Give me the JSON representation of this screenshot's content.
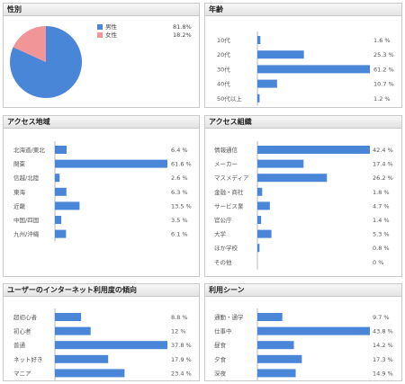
{
  "colors": {
    "bar": "#4a86d8",
    "male": "#4a86d8",
    "female": "#f29599",
    "axis": "#b9b9b9"
  },
  "chart_data": [
    {
      "id": "gender",
      "type": "pie",
      "title": "性別",
      "categories": [
        "男性",
        "女性"
      ],
      "values": [
        81.8,
        18.2
      ],
      "labels": [
        "81.8%",
        "18.2%"
      ],
      "colors": [
        "#4a86d8",
        "#f29599"
      ],
      "legend": "right"
    },
    {
      "id": "age",
      "type": "bar",
      "orientation": "horizontal",
      "title": "年齢",
      "categories": [
        "10代",
        "20代",
        "30代",
        "40代",
        "50代以上"
      ],
      "values": [
        1.6,
        25.3,
        61.2,
        10.7,
        1.2
      ],
      "labels": [
        "1.6 %",
        "25.3 %",
        "61.2 %",
        "10.7 %",
        "1.2 %"
      ],
      "xlim": [
        0,
        61.2
      ],
      "grid": false
    },
    {
      "id": "area",
      "type": "bar",
      "orientation": "horizontal",
      "title": "アクセス地域",
      "categories": [
        "北海道/東北",
        "関東",
        "信越/北陸",
        "東海",
        "近畿",
        "中国/四国",
        "九州/沖縄"
      ],
      "values": [
        6.4,
        61.6,
        2.6,
        6.3,
        13.5,
        3.5,
        6.1
      ],
      "labels": [
        "6.4 %",
        "61.6 %",
        "2.6 %",
        "6.3 %",
        "13.5 %",
        "3.5 %",
        "6.1 %"
      ],
      "xlim": [
        0,
        61.6
      ],
      "grid": false
    },
    {
      "id": "org",
      "type": "bar",
      "orientation": "horizontal",
      "title": "アクセス組織",
      "categories": [
        "情報通信",
        "メーカー",
        "マスメディア",
        "金融・商社",
        "サービス業",
        "官公庁",
        "大学",
        "ほか学校",
        "その他"
      ],
      "values": [
        42.4,
        17.4,
        26.2,
        1.8,
        4.7,
        1.4,
        5.3,
        0.8,
        0
      ],
      "labels": [
        "42.4 %",
        "17.4 %",
        "26.2 %",
        "1.8 %",
        "4.7 %",
        "1.4 %",
        "5.3 %",
        "0.8 %",
        "0 %"
      ],
      "xlim": [
        0,
        42.4
      ],
      "grid": false
    },
    {
      "id": "level",
      "type": "bar",
      "orientation": "horizontal",
      "title": "ユーザーのインターネット利用度の傾向",
      "categories": [
        "超初心者",
        "初心者",
        "普通",
        "ネット好き",
        "マニア"
      ],
      "values": [
        8.8,
        12,
        37.8,
        17.9,
        23.4
      ],
      "labels": [
        "8.8 %",
        "12 %",
        "37.8 %",
        "17.9 %",
        "23.4 %"
      ],
      "xlim": [
        0,
        37.8
      ],
      "grid": false
    },
    {
      "id": "scene",
      "type": "bar",
      "orientation": "horizontal",
      "title": "利用シーン",
      "categories": [
        "通勤・通学",
        "仕事中",
        "昼食",
        "夕食",
        "深夜"
      ],
      "values": [
        9.7,
        43.8,
        14.2,
        17.3,
        14.9
      ],
      "labels": [
        "9.7 %",
        "43.8 %",
        "14.2 %",
        "17.3 %",
        "14.9 %"
      ],
      "xlim": [
        0,
        43.8
      ],
      "grid": false
    }
  ]
}
